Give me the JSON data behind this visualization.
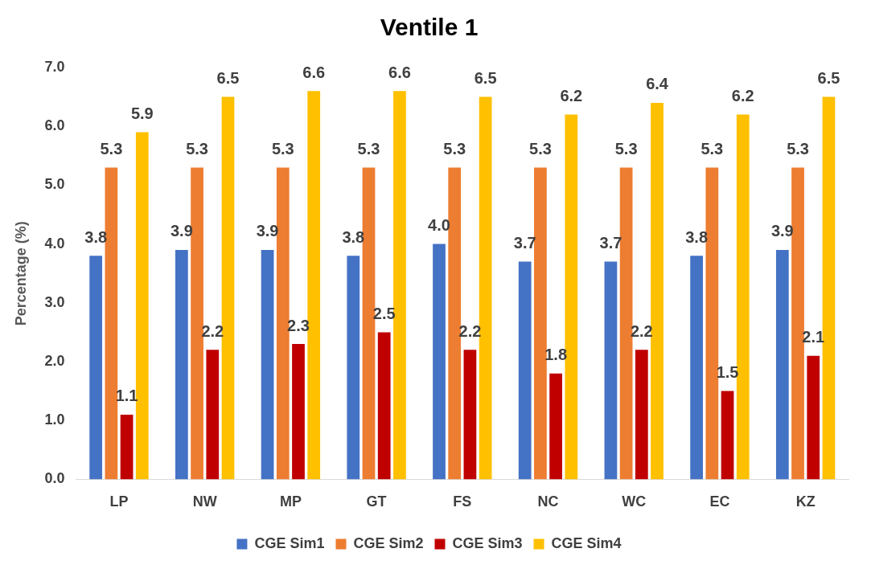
{
  "chart_data": {
    "type": "bar",
    "title": "Ventile 1",
    "ylabel": "Percentage (%)",
    "categories": [
      "LP",
      "NW",
      "MP",
      "GT",
      "FS",
      "NC",
      "WC",
      "EC",
      "KZ"
    ],
    "series": [
      {
        "name": "CGE Sim1",
        "color": "#4472c4",
        "values": [
          3.8,
          3.9,
          3.9,
          3.8,
          4.0,
          3.7,
          3.7,
          3.8,
          3.9
        ],
        "value_labels": [
          "3.8",
          "3.9",
          "3.9",
          "3.8",
          "4.0",
          "3.7",
          "3.7",
          "3.8",
          "3.9"
        ]
      },
      {
        "name": "CGE Sim2",
        "color": "#ed7d31",
        "values": [
          5.3,
          5.3,
          5.3,
          5.3,
          5.3,
          5.3,
          5.3,
          5.3,
          5.3
        ],
        "value_labels": [
          "5.3",
          "5.3",
          "5.3",
          "5.3",
          "5.3",
          "5.3",
          "5.3",
          "5.3",
          "5.3"
        ]
      },
      {
        "name": "CGE Sim3",
        "color": "#c00000",
        "values": [
          1.1,
          2.2,
          2.3,
          2.5,
          2.2,
          1.8,
          2.2,
          1.5,
          2.1
        ],
        "value_labels": [
          "1.1",
          "2.2",
          "2.3",
          "2.5",
          "2.2",
          "1.8",
          "2.2",
          "1.5",
          "2.1"
        ]
      },
      {
        "name": "CGE Sim4",
        "color": "#ffc000",
        "values": [
          5.9,
          6.5,
          6.6,
          6.6,
          6.5,
          6.2,
          6.4,
          6.2,
          6.5
        ],
        "value_labels": [
          "5.9",
          "6.5",
          "6.6",
          "6.6",
          "6.5",
          "6.2",
          "6.4",
          "6.2",
          "6.5"
        ]
      }
    ],
    "ylim": [
      0,
      7
    ],
    "yticks": [
      {
        "value": 0,
        "label": "0.0"
      },
      {
        "value": 1,
        "label": "1.0"
      },
      {
        "value": 2,
        "label": "2.0"
      },
      {
        "value": 3,
        "label": "3.0"
      },
      {
        "value": 4,
        "label": "4.0"
      },
      {
        "value": 5,
        "label": "5.0"
      },
      {
        "value": 6,
        "label": "6.0"
      },
      {
        "value": 7,
        "label": "7.0"
      }
    ],
    "grid": false,
    "legend": "bottom"
  }
}
